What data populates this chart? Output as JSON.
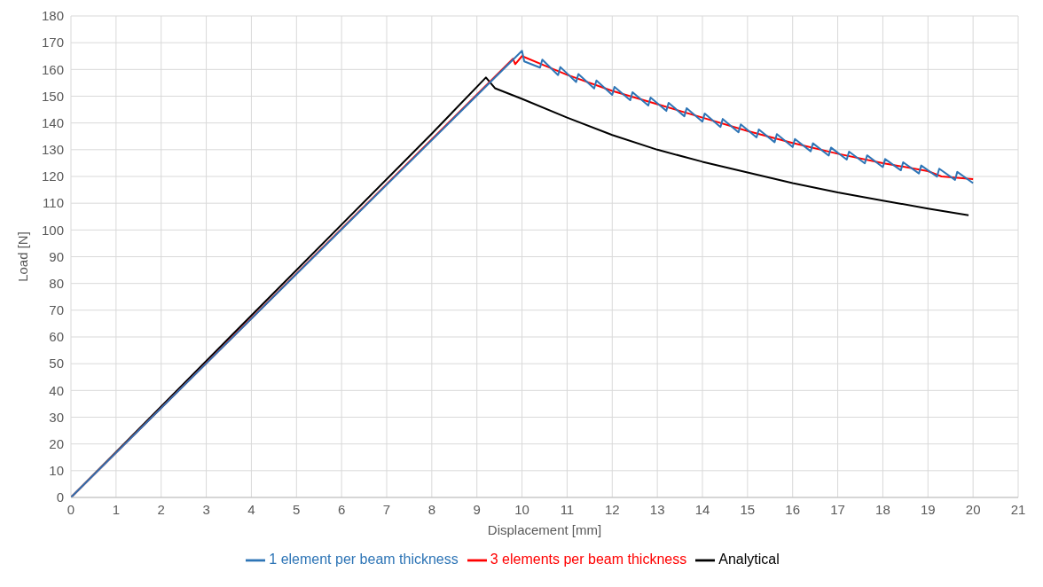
{
  "chart_data": {
    "type": "line",
    "xlabel": "Displacement [mm]",
    "ylabel": "Load [N]",
    "xlim": [
      0,
      21
    ],
    "xticks": [
      0,
      1,
      2,
      3,
      4,
      5,
      6,
      7,
      8,
      9,
      10,
      11,
      12,
      13,
      14,
      15,
      16,
      17,
      18,
      19,
      20,
      21
    ],
    "ylim": [
      0,
      180
    ],
    "yticks": [
      0,
      10,
      20,
      30,
      40,
      50,
      60,
      70,
      80,
      90,
      100,
      110,
      120,
      130,
      140,
      150,
      160,
      170,
      180
    ],
    "grid": true,
    "legend": "bottom",
    "marker": "none",
    "line_style": "solid",
    "series": [
      {
        "name": "Analytical",
        "color": "#000000",
        "x": [
          0,
          8,
          9.2,
          9.4,
          9.7,
          10,
          11,
          12,
          13,
          14,
          15,
          16,
          17,
          18,
          19,
          19.9
        ],
        "values": [
          0,
          136,
          157,
          153,
          151,
          149,
          142,
          135.5,
          130,
          125.5,
          121.5,
          117.5,
          114,
          111,
          108,
          105.5
        ]
      },
      {
        "name": "3 elements per beam thickness",
        "color": "#ff0000",
        "x": [
          0,
          9.8,
          9.85,
          10,
          10.5,
          11,
          12,
          13,
          14,
          15,
          16,
          17,
          18,
          19,
          19.3,
          20
        ],
        "values": [
          0,
          164,
          162,
          165,
          161.5,
          158,
          152,
          147,
          142,
          137,
          132.5,
          128.5,
          125,
          122,
          120,
          119
        ]
      },
      {
        "name": "1 element per beam thickness",
        "color": "#2e75b6",
        "x": [
          0,
          10,
          10.05,
          10.4,
          10.45,
          10.8,
          10.85,
          11.2,
          11.25,
          11.6,
          11.65,
          12,
          12.05,
          12.4,
          12.45,
          12.8,
          12.85,
          13.2,
          13.25,
          13.6,
          13.65,
          14,
          14.05,
          14.4,
          14.45,
          14.8,
          14.85,
          15.2,
          15.25,
          15.6,
          15.65,
          16,
          16.05,
          16.4,
          16.45,
          16.8,
          16.85,
          17.2,
          17.25,
          17.6,
          17.65,
          18,
          18.05,
          18.4,
          18.45,
          18.8,
          18.85,
          19.2,
          19.25,
          19.6,
          19.65,
          20
        ],
        "values": [
          0,
          167,
          163,
          160.7,
          163.7,
          157.9,
          160.9,
          155.3,
          158.3,
          152.9,
          155.9,
          150.5,
          153.5,
          148.5,
          151.5,
          146.5,
          149.5,
          144.5,
          147.5,
          142.5,
          145.5,
          140.5,
          143.5,
          138.5,
          141.5,
          136.5,
          139.5,
          134.6,
          137.6,
          132.8,
          135.8,
          131,
          134,
          129.4,
          132.4,
          127.8,
          130.8,
          126.3,
          129.3,
          124.9,
          127.9,
          123.5,
          126.5,
          122.3,
          125.3,
          121.1,
          124.1,
          119.9,
          122.9,
          118.7,
          121.7,
          117.5
        ]
      }
    ]
  }
}
